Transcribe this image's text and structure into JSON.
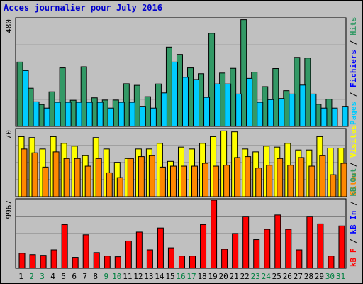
{
  "title": "Acces journalier pour July 2016",
  "colors": {
    "hits": "#339966",
    "files": "#0000ff",
    "pages": "#00ccff",
    "visits": "#ffff00",
    "sites": "#ff8800",
    "kbf": "#ff0000",
    "kbin": "#0000ff",
    "kbout": "#339966",
    "weekday_label": "#000000",
    "weekend_label": "#008040"
  },
  "panels": {
    "top": {
      "ymax_label": "480",
      "legend": [
        "Hits",
        "/",
        "Fichiers",
        "/",
        "Pages"
      ]
    },
    "mid": {
      "ymax_label": "70",
      "legend": [
        "Visites",
        "/",
        "Sites"
      ]
    },
    "bot": {
      "ymax_label": "9967",
      "legend": [
        "kB Out",
        "/",
        "kB In",
        "/",
        "kB F"
      ]
    }
  },
  "chart_data": {
    "type": "bar",
    "categories": [
      "1",
      "2",
      "3",
      "4",
      "5",
      "6",
      "7",
      "8",
      "9",
      "10",
      "11",
      "12",
      "13",
      "14",
      "15",
      "16",
      "17",
      "18",
      "19",
      "20",
      "21",
      "22",
      "23",
      "24",
      "25",
      "26",
      "27",
      "28",
      "29",
      "30",
      "31"
    ],
    "weekend_days": [
      "2",
      "3",
      "9",
      "10",
      "16",
      "17",
      "23",
      "24",
      "30",
      "31"
    ],
    "top": {
      "ymax": 480,
      "series": [
        {
          "name": "Hits",
          "values": [
            288,
            171,
            98,
            155,
            262,
            117,
            267,
            128,
            118,
            118,
            191,
            184,
            133,
            190,
            355,
            322,
            262,
            236,
            417,
            239,
            260,
            478,
            243,
            178,
            259,
            160,
            309,
            306,
            99,
            122,
            0
          ]
        },
        {
          "name": "Fichiers",
          "values": [
            0,
            0,
            0,
            0,
            0,
            0,
            0,
            0,
            0,
            0,
            0,
            0,
            0,
            0,
            0,
            0,
            0,
            0,
            0,
            0,
            0,
            0,
            0,
            0,
            0,
            0,
            0,
            0,
            0,
            0,
            0
          ]
        },
        {
          "name": "Pages",
          "values": [
            250,
            110,
            82,
            108,
            108,
            108,
            108,
            108,
            82,
            108,
            108,
            90,
            82,
            150,
            288,
            220,
            210,
            130,
            190,
            190,
            145,
            215,
            108,
            120,
            125,
            145,
            185,
            145,
            82,
            82,
            90
          ]
        }
      ]
    },
    "mid": {
      "ymax": 70,
      "series": [
        {
          "name": "Visites",
          "values": [
            63,
            62,
            50,
            63,
            56,
            53,
            43,
            62,
            50,
            36,
            40,
            50,
            50,
            56,
            37,
            52,
            50,
            56,
            63,
            69,
            68,
            50,
            47,
            53,
            52,
            56,
            49,
            49,
            63,
            51,
            51
          ]
        },
        {
          "name": "Sites",
          "values": [
            50,
            46,
            31,
            47,
            40,
            40,
            32,
            40,
            25,
            20,
            40,
            42,
            43,
            31,
            32,
            32,
            32,
            35,
            32,
            33,
            41,
            42,
            30,
            33,
            40,
            33,
            41,
            32,
            43,
            23,
            35
          ]
        }
      ]
    },
    "bot": {
      "ymax": 9967,
      "series": [
        {
          "name": "kB F",
          "values": [
            2200,
            2000,
            1900,
            2700,
            6400,
            1600,
            4900,
            2300,
            1800,
            1700,
            4000,
            5300,
            2700,
            5900,
            3000,
            1800,
            1800,
            6400,
            9967,
            2800,
            5100,
            7600,
            4200,
            5700,
            7800,
            5700,
            2700,
            7600,
            6500,
            1800,
            6200
          ]
        },
        {
          "name": "kB In",
          "values": [
            0,
            0,
            0,
            0,
            0,
            0,
            0,
            0,
            0,
            0,
            0,
            0,
            0,
            0,
            0,
            0,
            0,
            0,
            0,
            0,
            0,
            0,
            0,
            0,
            0,
            0,
            0,
            0,
            0,
            0,
            0
          ]
        },
        {
          "name": "kB Out",
          "values": [
            0,
            0,
            0,
            0,
            0,
            0,
            0,
            0,
            0,
            0,
            0,
            0,
            0,
            0,
            0,
            0,
            0,
            0,
            0,
            0,
            0,
            0,
            0,
            0,
            0,
            0,
            0,
            0,
            0,
            0,
            0
          ]
        }
      ]
    }
  }
}
